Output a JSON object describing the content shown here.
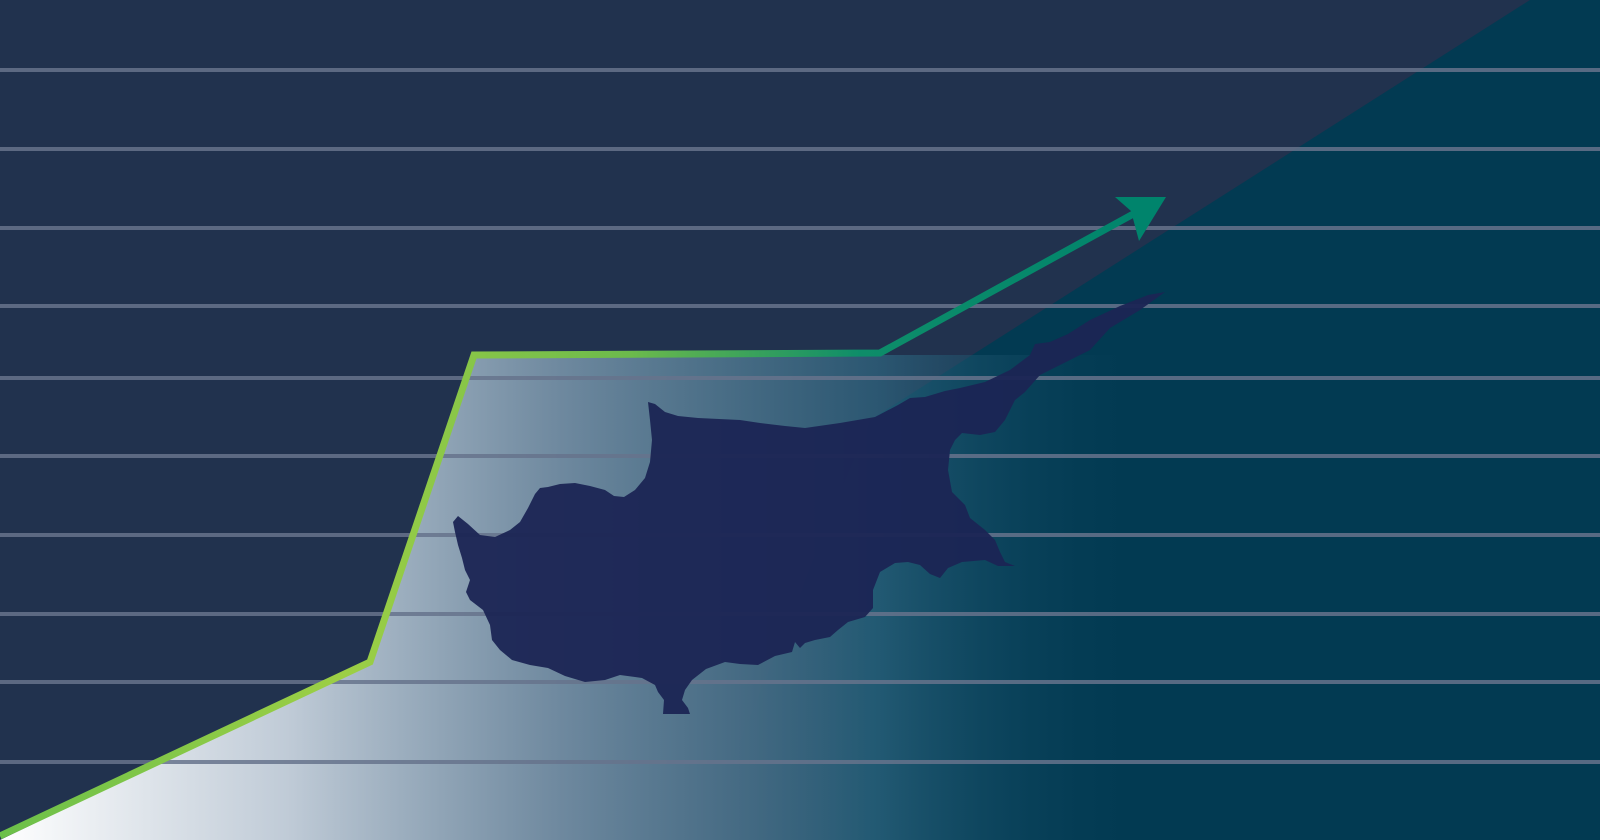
{
  "illustration": {
    "subject": "growth",
    "colors": {
      "background": "#21324e",
      "teal_band": "#023a52",
      "gridline": "#66738c",
      "island_silhouette": "#1b2554",
      "line_start": "#8cc63f",
      "line_end": "#00846c",
      "glow": "#ffffff"
    },
    "icons": [
      "cyprus-map-icon",
      "arrow-head-icon"
    ]
  }
}
